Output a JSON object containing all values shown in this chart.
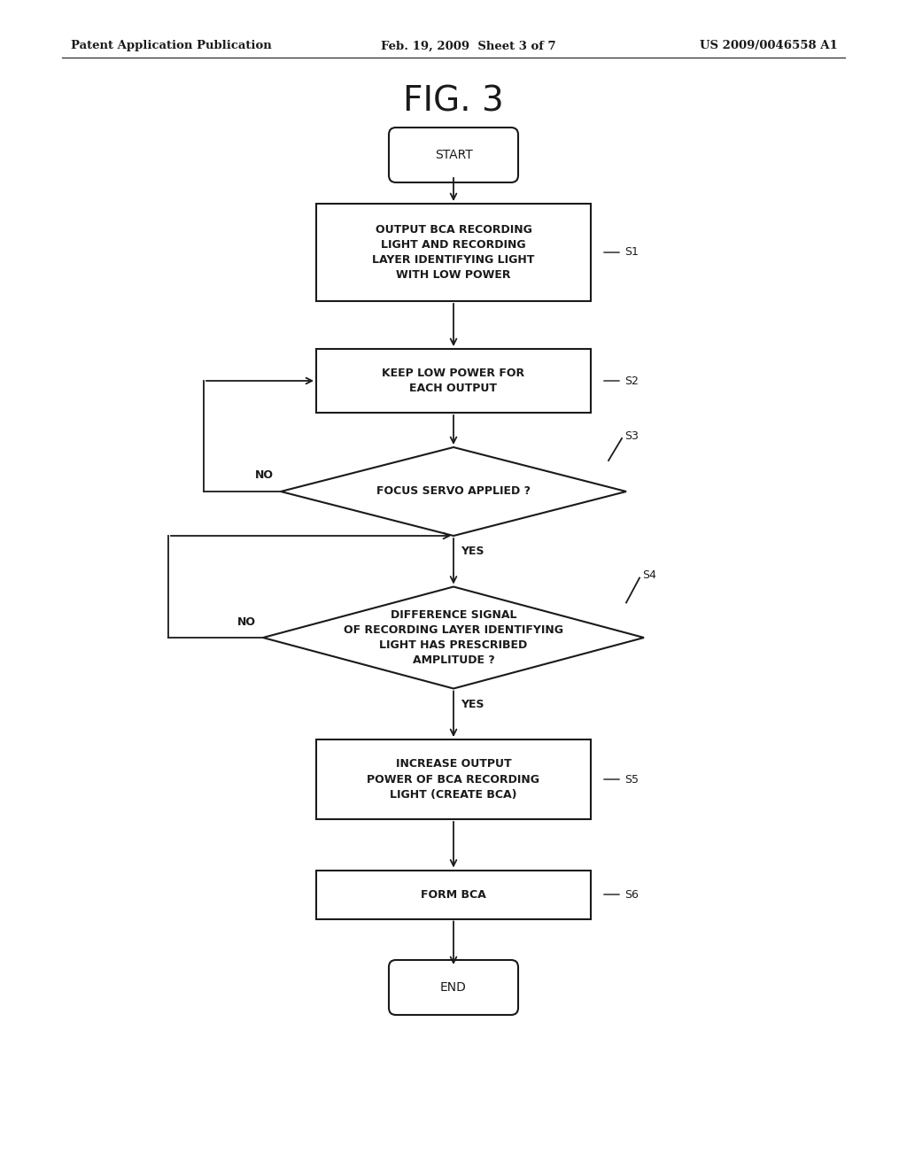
{
  "title": "FIG. 3",
  "header_left": "Patent Application Publication",
  "header_mid": "Feb. 19, 2009  Sheet 3 of 7",
  "header_right": "US 2009/0046558 A1",
  "bg_color": "#ffffff",
  "line_color": "#1a1a1a",
  "text_color": "#1a1a1a",
  "start_label": "START",
  "end_label": "END",
  "s1_label": "OUTPUT BCA RECORDING\nLIGHT AND RECORDING\nLAYER IDENTIFYING LIGHT\nWITH LOW POWER",
  "s2_label": "KEEP LOW POWER FOR\nEACH OUTPUT",
  "s3_label": "FOCUS SERVO APPLIED ?",
  "s4_label": "DIFFERENCE SIGNAL\nOF RECORDING LAYER IDENTIFYING\nLIGHT HAS PRESCRIBED\nAMPLITUDE ?",
  "s5_label": "INCREASE OUTPUT\nPOWER OF BCA RECORDING\nLIGHT (CREATE BCA)",
  "s6_label": "FORM BCA",
  "font_size_title": 28,
  "font_size_header": 9.5,
  "font_size_node": 9,
  "font_size_step": 9,
  "font_size_start_end": 10
}
